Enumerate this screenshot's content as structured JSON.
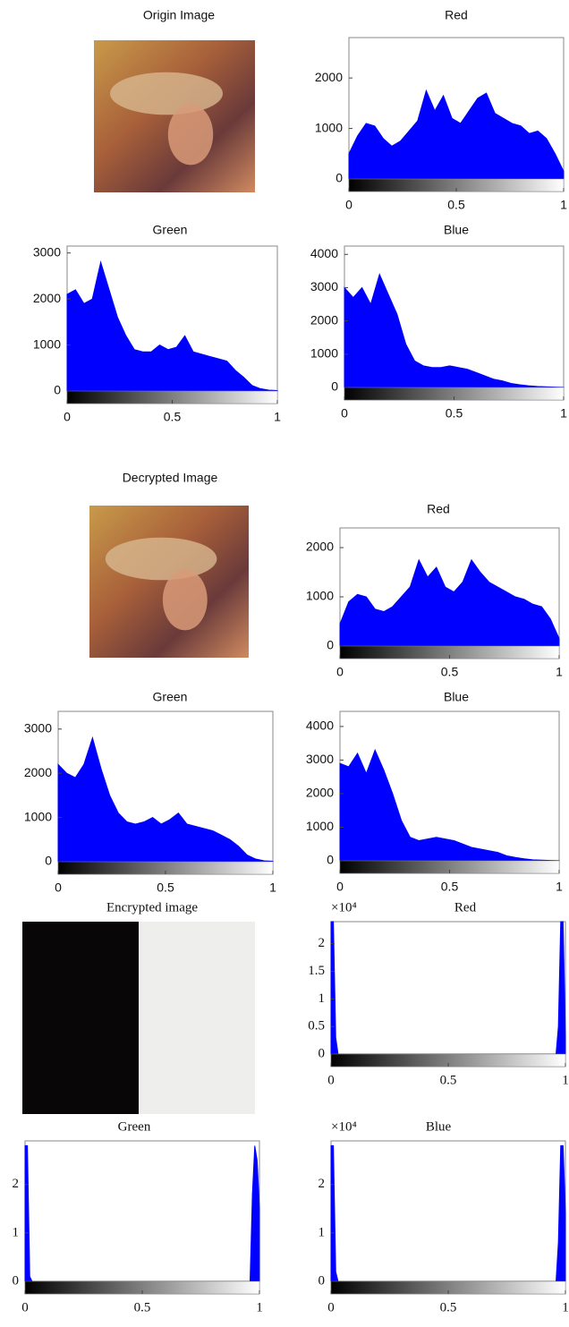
{
  "chart_data": [
    {
      "type": "image",
      "title": "Origin Image"
    },
    {
      "type": "area",
      "title": "Red",
      "color": "#0000ff",
      "x": [
        0,
        0.04,
        0.08,
        0.12,
        0.16,
        0.2,
        0.24,
        0.28,
        0.32,
        0.36,
        0.4,
        0.44,
        0.48,
        0.52,
        0.56,
        0.6,
        0.64,
        0.68,
        0.72,
        0.76,
        0.8,
        0.84,
        0.88,
        0.92,
        0.96,
        1
      ],
      "values": [
        500,
        850,
        1100,
        1050,
        800,
        650,
        750,
        950,
        1150,
        1750,
        1350,
        1650,
        1200,
        1100,
        1350,
        1600,
        1700,
        1300,
        1200,
        1100,
        1050,
        900,
        950,
        800,
        500,
        150
      ],
      "xlim": [
        0,
        1
      ],
      "xticks": [
        0,
        0.5,
        1
      ],
      "ylim": [
        0,
        2800
      ],
      "yticks": [
        0,
        1000,
        2000
      ]
    },
    {
      "type": "area",
      "title": "Green",
      "color": "#0000ff",
      "x": [
        0,
        0.04,
        0.08,
        0.12,
        0.16,
        0.2,
        0.24,
        0.28,
        0.32,
        0.36,
        0.4,
        0.44,
        0.48,
        0.52,
        0.56,
        0.6,
        0.64,
        0.68,
        0.72,
        0.76,
        0.8,
        0.84,
        0.88,
        0.92,
        0.96,
        1
      ],
      "values": [
        2100,
        2200,
        1900,
        2000,
        2800,
        2200,
        1600,
        1200,
        900,
        850,
        850,
        1000,
        900,
        950,
        1200,
        850,
        800,
        750,
        700,
        650,
        450,
        300,
        120,
        50,
        20,
        10
      ],
      "xlim": [
        0,
        1
      ],
      "xticks": [
        0,
        0.5,
        1
      ],
      "ylim": [
        0,
        3150
      ],
      "yticks": [
        0,
        1000,
        2000,
        3000
      ]
    },
    {
      "type": "area",
      "title": "Blue",
      "color": "#0000ff",
      "x": [
        0,
        0.04,
        0.08,
        0.12,
        0.16,
        0.2,
        0.24,
        0.28,
        0.32,
        0.36,
        0.4,
        0.44,
        0.48,
        0.52,
        0.56,
        0.6,
        0.64,
        0.68,
        0.72,
        0.76,
        0.8,
        0.84,
        0.88,
        0.92,
        0.96,
        1
      ],
      "values": [
        3000,
        2700,
        3000,
        2500,
        3400,
        2800,
        2200,
        1300,
        800,
        650,
        600,
        600,
        650,
        600,
        550,
        450,
        350,
        250,
        200,
        120,
        80,
        50,
        30,
        20,
        10,
        5
      ],
      "xlim": [
        0,
        1
      ],
      "xticks": [
        0,
        0.5,
        1
      ],
      "ylim": [
        0,
        4250
      ],
      "yticks": [
        0,
        1000,
        2000,
        3000,
        4000
      ]
    },
    {
      "type": "image",
      "title": "Decrypted Image"
    },
    {
      "type": "area",
      "title": "Red",
      "color": "#0000ff",
      "x": [
        0,
        0.04,
        0.08,
        0.12,
        0.16,
        0.2,
        0.24,
        0.28,
        0.32,
        0.36,
        0.4,
        0.44,
        0.48,
        0.52,
        0.56,
        0.6,
        0.64,
        0.68,
        0.72,
        0.76,
        0.8,
        0.84,
        0.88,
        0.92,
        0.96,
        1
      ],
      "values": [
        450,
        900,
        1050,
        1000,
        750,
        700,
        800,
        1000,
        1200,
        1750,
        1400,
        1600,
        1200,
        1100,
        1300,
        1750,
        1500,
        1300,
        1200,
        1100,
        1000,
        950,
        850,
        800,
        550,
        150
      ],
      "xlim": [
        0,
        1
      ],
      "xticks": [
        0,
        0.5,
        1
      ],
      "ylim": [
        0,
        2400
      ],
      "yticks": [
        0,
        1000,
        2000
      ]
    },
    {
      "type": "area",
      "title": "Green",
      "color": "#0000ff",
      "x": [
        0,
        0.04,
        0.08,
        0.12,
        0.16,
        0.2,
        0.24,
        0.28,
        0.32,
        0.36,
        0.4,
        0.44,
        0.48,
        0.52,
        0.56,
        0.6,
        0.64,
        0.68,
        0.72,
        0.76,
        0.8,
        0.84,
        0.88,
        0.92,
        0.96,
        1
      ],
      "values": [
        2200,
        2000,
        1900,
        2200,
        2800,
        2100,
        1500,
        1100,
        900,
        850,
        900,
        1000,
        850,
        950,
        1100,
        850,
        800,
        750,
        700,
        600,
        500,
        350,
        150,
        60,
        20,
        10
      ],
      "xlim": [
        0,
        1
      ],
      "xticks": [
        0,
        0.5,
        1
      ],
      "ylim": [
        0,
        3400
      ],
      "yticks": [
        0,
        1000,
        2000,
        3000
      ]
    },
    {
      "type": "area",
      "title": "Blue",
      "color": "#0000ff",
      "x": [
        0,
        0.04,
        0.08,
        0.12,
        0.16,
        0.2,
        0.24,
        0.28,
        0.32,
        0.36,
        0.4,
        0.44,
        0.48,
        0.52,
        0.56,
        0.6,
        0.64,
        0.68,
        0.72,
        0.76,
        0.8,
        0.84,
        0.88,
        0.92,
        0.96,
        1
      ],
      "values": [
        2900,
        2800,
        3200,
        2600,
        3300,
        2700,
        2000,
        1200,
        700,
        600,
        650,
        700,
        650,
        600,
        500,
        400,
        350,
        300,
        250,
        150,
        100,
        60,
        30,
        20,
        10,
        5
      ],
      "xlim": [
        0,
        1
      ],
      "xticks": [
        0,
        0.5,
        1
      ],
      "ylim": [
        0,
        4450
      ],
      "yticks": [
        0,
        1000,
        2000,
        3000,
        4000
      ]
    },
    {
      "type": "image",
      "title": "Encrypted image"
    },
    {
      "type": "area",
      "title": "Red",
      "axis_note": "×10⁴",
      "color": "#0000ff",
      "x": [
        0,
        0.01,
        0.02,
        0.03,
        0.5,
        0.96,
        0.97,
        0.98,
        0.99,
        1
      ],
      "values": [
        2.4,
        2.4,
        0.3,
        0,
        0,
        0,
        0.5,
        2.4,
        2.4,
        0.3
      ],
      "xlim": [
        0,
        1
      ],
      "xticks": [
        0,
        0.5,
        1
      ],
      "ylim": [
        0,
        2.4
      ],
      "yticks": [
        0,
        0.5,
        1,
        1.5,
        2
      ]
    },
    {
      "type": "area",
      "title": "Green",
      "color": "#0000ff",
      "x": [
        0,
        0.01,
        0.02,
        0.03,
        0.5,
        0.96,
        0.97,
        0.98,
        0.99,
        1
      ],
      "values": [
        2.8,
        2.8,
        0.1,
        0,
        0,
        0,
        1.8,
        2.8,
        2.5,
        1.5
      ],
      "xlim": [
        0,
        1
      ],
      "xticks": [
        0,
        0.5,
        1
      ],
      "ylim": [
        0,
        2.9
      ],
      "yticks": [
        0,
        1,
        2
      ]
    },
    {
      "type": "area",
      "title": "Blue",
      "axis_note": "×10⁴",
      "color": "#0000ff",
      "x": [
        0,
        0.01,
        0.02,
        0.03,
        0.5,
        0.96,
        0.97,
        0.98,
        0.99,
        1
      ],
      "values": [
        2.8,
        2.8,
        0.2,
        0,
        0,
        0,
        0.8,
        2.8,
        2.8,
        1.4
      ],
      "xlim": [
        0,
        1
      ],
      "xticks": [
        0,
        0.5,
        1
      ],
      "ylim": [
        0,
        2.9
      ],
      "yticks": [
        0,
        1,
        2
      ]
    }
  ]
}
